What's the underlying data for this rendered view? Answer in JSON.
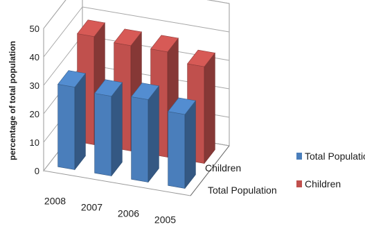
{
  "chart_data": {
    "type": "bar",
    "style": "3d-column",
    "categories": [
      "2008",
      "2007",
      "2006",
      "2005"
    ],
    "series": [
      {
        "name": "Total Population",
        "values": [
          29,
          28,
          29,
          26
        ],
        "color": "#4a7ebb"
      },
      {
        "name": "Children",
        "values": [
          38,
          37,
          37,
          34
        ],
        "color": "#c0504d"
      }
    ],
    "depth_labels": [
      "Children",
      "Total Population"
    ],
    "ylabel": "percentage of total population",
    "xlabel": "",
    "ylim": [
      0,
      50
    ],
    "yticks": [
      0,
      10,
      20,
      30,
      40,
      50
    ],
    "grid": true,
    "legend": "right"
  }
}
